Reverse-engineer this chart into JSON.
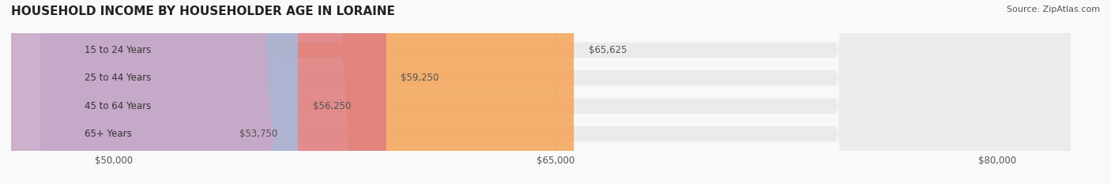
{
  "title": "HOUSEHOLD INCOME BY HOUSEHOLDER AGE IN LORAINE",
  "source": "Source: ZipAtlas.com",
  "categories": [
    "15 to 24 Years",
    "25 to 44 Years",
    "45 to 64 Years",
    "65+ Years"
  ],
  "values": [
    65625,
    59250,
    56250,
    53750
  ],
  "bar_colors": [
    "#F4A860",
    "#E08080",
    "#A8B8D8",
    "#C8A8C8"
  ],
  "bar_bg_color": "#EBEBEB",
  "value_labels": [
    "$65,625",
    "$59,250",
    "$56,250",
    "$53,750"
  ],
  "x_min": 47500,
  "x_max": 82500,
  "x_ticks": [
    50000,
    65000,
    80000
  ],
  "x_tick_labels": [
    "$50,000",
    "$65,000",
    "$80,000"
  ],
  "background_color": "#F9F9F9",
  "bar_bg_full": 82500
}
